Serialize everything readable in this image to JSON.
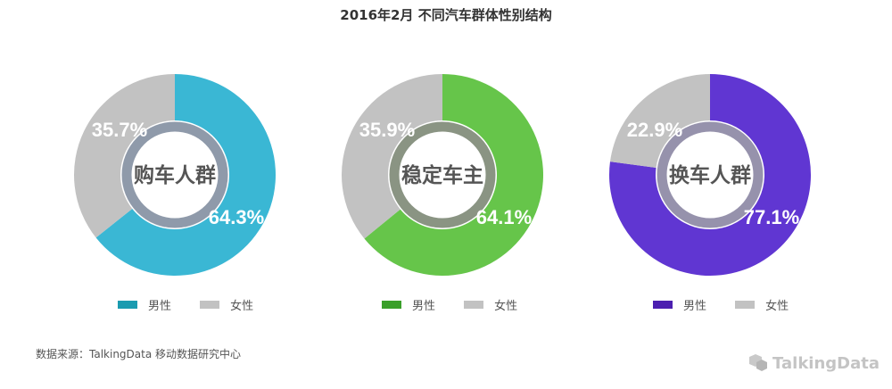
{
  "title": "2016年2月 不同汽车群体性别结构",
  "chart_data": [
    {
      "type": "pie",
      "center_label": "购车人群",
      "categories": [
        "男性",
        "女性"
      ],
      "values": [
        64.3,
        35.7
      ],
      "labels": [
        "64.3%",
        "35.7%"
      ],
      "colors": [
        "#3ab7d4",
        "#c2c2c2"
      ],
      "ring_color": "#8f9aaa",
      "legend_colors": [
        "#1a9bb0",
        "#c2c2c2"
      ]
    },
    {
      "type": "pie",
      "center_label": "稳定车主",
      "categories": [
        "男性",
        "女性"
      ],
      "values": [
        64.1,
        35.9
      ],
      "labels": [
        "64.1%",
        "35.9%"
      ],
      "colors": [
        "#66c54a",
        "#c2c2c2"
      ],
      "ring_color": "#8a9483",
      "legend_colors": [
        "#3a9f2a",
        "#c2c2c2"
      ]
    },
    {
      "type": "pie",
      "center_label": "换车人群",
      "categories": [
        "男性",
        "女性"
      ],
      "values": [
        77.1,
        22.9
      ],
      "labels": [
        "77.1%",
        "22.9%"
      ],
      "colors": [
        "#6036d2",
        "#c2c2c2"
      ],
      "ring_color": "#9692ac",
      "legend_colors": [
        "#4c1fb0",
        "#c2c2c2"
      ]
    }
  ],
  "source": "数据来源：TalkingData 移动数据研究中心",
  "brand": "TalkingData"
}
